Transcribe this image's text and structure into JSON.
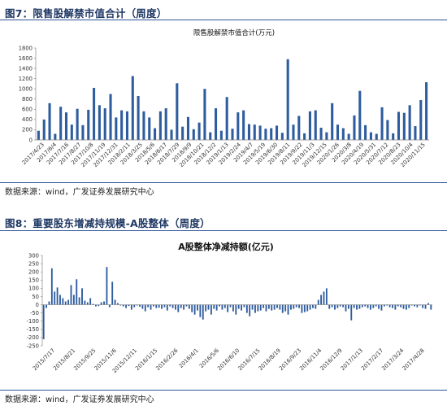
{
  "figures": [
    {
      "label": "图7：限售股解禁市值合计（周度）",
      "source": "数据来源：wind，广发证券发展研究中心"
    },
    {
      "label": "图8：重要股东增减持规模-A股整体（周度）",
      "source": "数据来源：wind，广发证券发展研究中心"
    }
  ],
  "colors": {
    "bar": "#2e5c9e",
    "accent": "#1f3864",
    "rule": "#2f5597"
  },
  "chart_data": [
    {
      "type": "bar",
      "title": "限售股解禁市值合计(万元)",
      "ylim": [
        0,
        1800
      ],
      "yticks": [
        0,
        200,
        400,
        600,
        800,
        1000,
        1200,
        1400,
        1600,
        1800
      ],
      "legend": "none",
      "grid": false,
      "x_tick_labels": [
        "2017/4/23",
        "2017/6/4",
        "2017/7/16",
        "2017/8/27",
        "2017/10/8",
        "2017/11/19",
        "2017/12/31",
        "2018/2/11",
        "2018/3/25",
        "2018/5/6",
        "2018/6/17",
        "2018/7/29",
        "2018/9/9",
        "2018/10/21",
        "2018/12/2",
        "2019/1/13",
        "2019/2/24",
        "2019/4/7",
        "2019/5/19",
        "2019/6/30",
        "2019/8/11",
        "2019/9/22",
        "2019/11/3",
        "2019/12/15",
        "2020/1/26",
        "2020/3/8",
        "2020/4/19",
        "2020/5/31",
        "2020/7/12",
        "2020/8/23",
        "2020/10/4",
        "2020/11/15"
      ],
      "values": [
        180,
        400,
        720,
        120,
        650,
        540,
        300,
        610,
        290,
        590,
        1020,
        680,
        620,
        900,
        440,
        580,
        560,
        1250,
        860,
        560,
        440,
        230,
        560,
        620,
        200,
        1110,
        260,
        450,
        210,
        340,
        1000,
        150,
        620,
        180,
        840,
        220,
        540,
        580,
        310,
        300,
        280,
        220,
        230,
        280,
        140,
        1580,
        300,
        470,
        130,
        560,
        580,
        240,
        150,
        720,
        300,
        230,
        120,
        480,
        960,
        290,
        150,
        120,
        640,
        390,
        130,
        550,
        530,
        680,
        270,
        780,
        1130
      ]
    },
    {
      "type": "bar",
      "title": "A股整体净减持额(亿元)",
      "ylim": [
        -250,
        300
      ],
      "yticks": [
        -250,
        -200,
        -150,
        -100,
        -50,
        0,
        50,
        100,
        150,
        200,
        250,
        300
      ],
      "legend": "none",
      "grid": false,
      "x_tick_labels": [
        "2015/7/17",
        "2015/8/21",
        "2015/9/25",
        "2015/11/6",
        "2015/12/11",
        "2016/1/15",
        "2016/2/26",
        "2016/4/1",
        "2016/5/6",
        "2016/6/10",
        "2016/7/15",
        "2016/8/19",
        "2016/9/23",
        "2016/11/4",
        "2016/12/9",
        "2017/1/13",
        "2017/2/17",
        "2017/3/24",
        "2017/4/28"
      ],
      "values": [
        -210,
        -20,
        20,
        222,
        80,
        105,
        60,
        40,
        20,
        30,
        120,
        60,
        155,
        45,
        100,
        25,
        15,
        40,
        5,
        -10,
        -8,
        15,
        20,
        230,
        -15,
        140,
        30,
        10,
        -5,
        -10,
        -20,
        -8,
        -30,
        -15,
        -5,
        -12,
        -25,
        -40,
        -15,
        -30,
        -10,
        -20,
        -18,
        -25,
        -15,
        -35,
        -10,
        -20,
        -30,
        -45,
        -20,
        -30,
        -10,
        -25,
        -45,
        -60,
        -35,
        -75,
        -90,
        -40,
        -30,
        -60,
        -25,
        -35,
        -10,
        -30,
        -20,
        -45,
        -15,
        -40,
        -60,
        -25,
        -35,
        -15,
        -50,
        -70,
        -30,
        -50,
        -40,
        -35,
        -20,
        -40,
        -25,
        -35,
        -30,
        -20,
        -30,
        -50,
        -40,
        -60,
        -30,
        -25,
        -15,
        -20,
        -50,
        -45,
        -40,
        -30,
        -20,
        -25,
        30,
        60,
        80,
        100,
        -25,
        -15,
        -30,
        -20,
        -10,
        -15,
        -40,
        -25,
        -95,
        -20,
        -30,
        -25,
        -15,
        -10,
        -20,
        -30,
        -20,
        -10,
        -25,
        -35,
        -10,
        -5,
        -15,
        -20,
        -30,
        -10,
        -15,
        -25,
        -30,
        -20,
        -5,
        -10,
        -15,
        -5,
        -20,
        -25,
        10,
        -30
      ]
    }
  ]
}
